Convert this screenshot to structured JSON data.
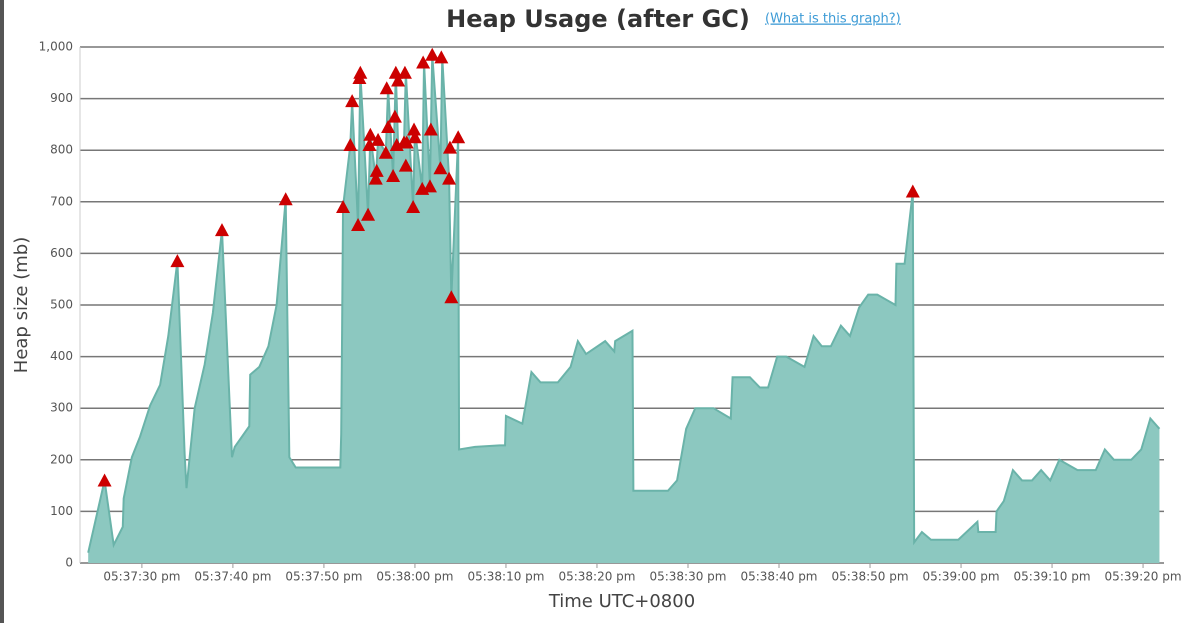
{
  "chart_data": {
    "type": "area",
    "title": "Heap Usage (after GC)",
    "link": "(What is this graph?)",
    "y_label": "Heap size (mb)",
    "x_label": "Time UTC+0800",
    "ylim": [
      0,
      1000
    ],
    "yticks": [
      0,
      100,
      200,
      300,
      400,
      500,
      600,
      700,
      800,
      900,
      {
        "value": 1000,
        "label": "1,000"
      }
    ],
    "xlim": [
      20243.2,
      20362.3
    ],
    "xticks": [
      {
        "value": 20250,
        "label": "05:37:30 pm"
      },
      {
        "value": 20260,
        "label": "05:37:40 pm"
      },
      {
        "value": 20270,
        "label": "05:37:50 pm"
      },
      {
        "value": 20280,
        "label": "05:38:00 pm"
      },
      {
        "value": 20290,
        "label": "05:38:10 pm"
      },
      {
        "value": 20300,
        "label": "05:38:20 pm"
      },
      {
        "value": 20310,
        "label": "05:38:30 pm"
      },
      {
        "value": 20320,
        "label": "05:38:40 pm"
      },
      {
        "value": 20330,
        "label": "05:38:50 pm"
      },
      {
        "value": 20340,
        "label": "05:39:00 pm"
      },
      {
        "value": 20350,
        "label": "05:39:10 pm"
      },
      {
        "value": 20360,
        "label": "05:39:20 pm"
      }
    ],
    "grid": true,
    "series": [
      {
        "color": "#8cc8c0",
        "line_color": "#6ab3a9",
        "x": [
          20244.1,
          20245.9,
          20246.9,
          20247.9,
          20248.0,
          20248.9,
          20249.8,
          20250.9,
          20252.0,
          20252.9,
          20253.9,
          20254.7,
          20254.9,
          20255.8,
          20256.9,
          20257.8,
          20258.8,
          20259.9,
          20260.2,
          20261.8,
          20261.9,
          20262.9,
          20263.9,
          20264.8,
          20265.8,
          20266.2,
          20266.9,
          20271.8,
          20271.9,
          20272.0,
          20272.1,
          20272.9,
          20273.1,
          20273.75,
          20274.0,
          20274.85,
          20275.1,
          20275.7,
          20275.95,
          20276.8,
          20277.05,
          20277.6,
          20277.9,
          20278.15,
          20278.8,
          20279.0,
          20279.8,
          20280.0,
          20280.8,
          20281.0,
          20281.65,
          20281.9,
          20282.8,
          20283.0,
          20283.75,
          20284.0,
          20284.75,
          20284.85,
          20286.6,
          20289.3,
          20289.9,
          20290.0,
          20291.8,
          20292.8,
          20293.8,
          20295.7,
          20297.1,
          20297.9,
          20298.8,
          20300.9,
          20301.9,
          20302.0,
          20303.9,
          20304.0,
          20307.8,
          20308.8,
          20309.8,
          20310.8,
          20312.8,
          20314.7,
          20314.9,
          20316.8,
          20317.9,
          20318.8,
          20319.8,
          20320.8,
          20322.8,
          20323.8,
          20324.7,
          20325.7,
          20326.8,
          20327.8,
          20328.8,
          20329.8,
          20330.8,
          20332.8,
          20332.9,
          20333.8,
          20334.7,
          20334.85,
          20335.7,
          20336.7,
          20339.7,
          20341.8,
          20341.9,
          20343.8,
          20343.9,
          20344.7,
          20345.7,
          20346.7,
          20347.8,
          20348.8,
          20349.8,
          20350.8,
          20352.8,
          20354.8,
          20355.8,
          20356.8,
          20358.7,
          20359.8,
          20360.8,
          20361.8
        ],
        "values": [
          20,
          160,
          35,
          70,
          125,
          205,
          245,
          305,
          345,
          440,
          585,
          210,
          145,
          300,
          385,
          485,
          645,
          205,
          225,
          265,
          365,
          380,
          420,
          500,
          705,
          205,
          185,
          185,
          250,
          455,
          690,
          810,
          895,
          655,
          950,
          675,
          830,
          745,
          820,
          795,
          920,
          750,
          950,
          810,
          815,
          950,
          690,
          840,
          725,
          970,
          730,
          985,
          765,
          980,
          745,
          515,
          825,
          220,
          225,
          228,
          228,
          285,
          270,
          370,
          350,
          350,
          380,
          430,
          405,
          430,
          410,
          430,
          450,
          140,
          140,
          160,
          260,
          300,
          300,
          280,
          360,
          360,
          340,
          340,
          400,
          400,
          380,
          440,
          420,
          420,
          460,
          440,
          495,
          520,
          520,
          500,
          580,
          580,
          720,
          40,
          60,
          45,
          45,
          80,
          60,
          60,
          100,
          120,
          180,
          160,
          160,
          180,
          160,
          200,
          180,
          180,
          220,
          200,
          200,
          220,
          280,
          260
        ]
      },
      {
        "color": "#cc0000",
        "marker": "triangle",
        "x": [
          20245.9,
          20253.9,
          20258.8,
          20265.8,
          20272.1,
          20272.9,
          20273.1,
          20273.75,
          20273.9,
          20274.0,
          20274.85,
          20275.0,
          20275.1,
          20275.7,
          20275.8,
          20275.95,
          20276.8,
          20276.9,
          20277.05,
          20277.6,
          20277.8,
          20277.9,
          20278.0,
          20278.15,
          20278.8,
          20278.9,
          20279.0,
          20279.1,
          20279.8,
          20279.9,
          20280.0,
          20280.8,
          20280.9,
          20281.65,
          20281.75,
          20281.9,
          20282.8,
          20282.9,
          20283.75,
          20283.85,
          20284.0,
          20284.75,
          20334.7
        ],
        "values": [
          160,
          585,
          645,
          705,
          690,
          810,
          895,
          655,
          940,
          950,
          675,
          810,
          830,
          745,
          760,
          820,
          795,
          920,
          845,
          750,
          865,
          950,
          810,
          935,
          815,
          950,
          770,
          815,
          690,
          840,
          825,
          725,
          970,
          730,
          840,
          985,
          765,
          980,
          745,
          805,
          515,
          825,
          720
        ]
      }
    ]
  }
}
